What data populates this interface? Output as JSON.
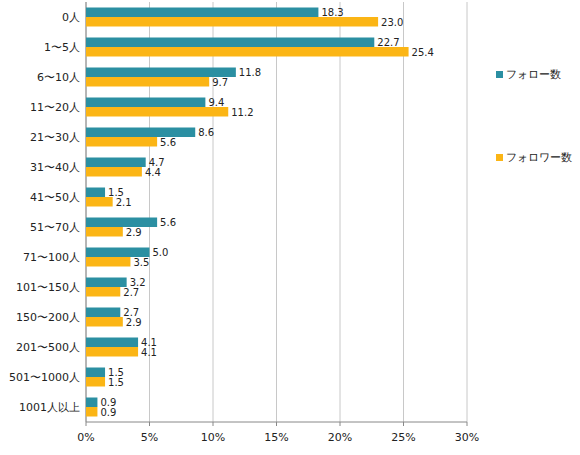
{
  "chart_data": {
    "type": "bar",
    "orientation": "horizontal",
    "categories": [
      "0人",
      "1〜5人",
      "6〜10人",
      "11〜20人",
      "21〜30人",
      "31〜40人",
      "41〜50人",
      "51〜70人",
      "71〜100人",
      "101〜150人",
      "150〜200人",
      "201〜500人",
      "501〜1000人",
      "1001人以上"
    ],
    "series": [
      {
        "name": "フォロー数",
        "color": "#2b8fa2",
        "values": [
          18.3,
          22.7,
          11.8,
          9.4,
          8.6,
          4.7,
          1.5,
          5.6,
          5.0,
          3.2,
          2.7,
          4.1,
          1.5,
          0.9
        ],
        "value_labels": [
          "18.3",
          "22.7",
          "11.8",
          "9.4",
          "8.6",
          "4.7",
          "1.5",
          "5.6",
          "5.0",
          "3.2",
          "2.7",
          "4.1",
          "1.5",
          "0.9"
        ]
      },
      {
        "name": "フォロワー数",
        "color": "#fbb515",
        "values": [
          23.0,
          25.4,
          9.7,
          11.2,
          5.6,
          4.4,
          2.1,
          2.9,
          3.5,
          2.7,
          2.9,
          4.1,
          1.5,
          0.9
        ],
        "value_labels": [
          "23.0",
          "25.4",
          "9.7",
          "11.2",
          "5.6",
          "4.4",
          "2.1",
          "2.9",
          "3.5",
          "2.7",
          "2.9",
          "4.1",
          "1.5",
          "0.9"
        ]
      }
    ],
    "xlim": [
      0,
      30
    ],
    "xticks": [
      {
        "value": 0,
        "label": "0%"
      },
      {
        "value": 5,
        "label": "5%"
      },
      {
        "value": 10,
        "label": "10%"
      },
      {
        "value": 15,
        "label": "15%"
      },
      {
        "value": 20,
        "label": "20%"
      },
      {
        "value": 25,
        "label": "25%"
      },
      {
        "value": 30,
        "label": "30%"
      }
    ],
    "grid": true,
    "data_labels": true,
    "legend": "right"
  }
}
